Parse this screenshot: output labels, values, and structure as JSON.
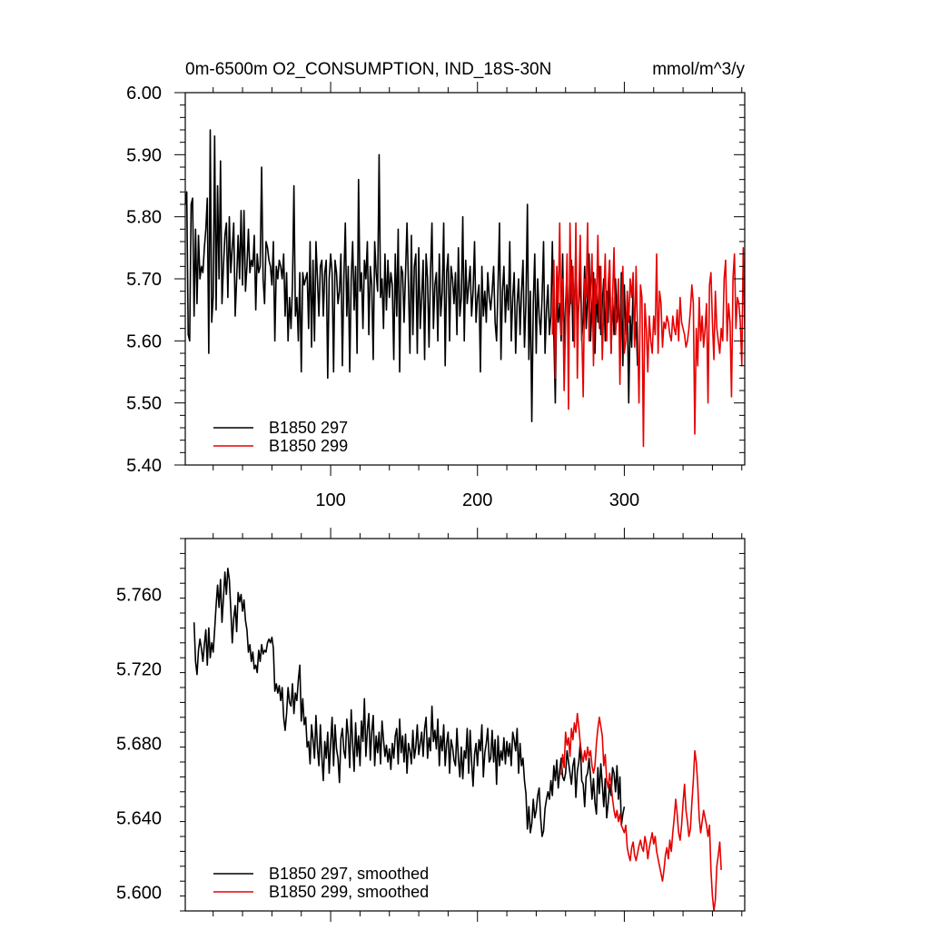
{
  "chart_data": [
    {
      "type": "line",
      "title_left": "0m-6500m O2_CONSUMPTION, IND_18S-30N",
      "title_right": "mmol/m^3/y",
      "xlim": [
        1,
        382
      ],
      "ylim": [
        5.4,
        6.0
      ],
      "xticks": [
        100,
        200,
        300
      ],
      "xtick_labels": [
        "100",
        "200",
        "300"
      ],
      "yticks": [
        5.4,
        5.5,
        5.6,
        5.7,
        5.8,
        5.9,
        6.0
      ],
      "ytick_labels": [
        "5.40",
        "5.50",
        "5.60",
        "5.70",
        "5.80",
        "5.90",
        "6.00"
      ],
      "legend_position": "bottom-left",
      "series": [
        {
          "name": "B1850 297",
          "color": "#000000",
          "x_start": 1,
          "values": [
            5.82,
            5.84,
            5.61,
            5.6,
            5.82,
            5.83,
            5.64,
            5.78,
            5.66,
            5.77,
            5.7,
            5.72,
            5.71,
            5.75,
            5.78,
            5.83,
            5.58,
            5.94,
            5.63,
            5.67,
            5.93,
            5.65,
            5.85,
            5.7,
            5.89,
            5.66,
            5.72,
            5.77,
            5.79,
            5.67,
            5.8,
            5.71,
            5.75,
            5.79,
            5.64,
            5.7,
            5.77,
            5.7,
            5.81,
            5.69,
            5.81,
            5.68,
            5.72,
            5.78,
            5.71,
            5.73,
            5.72,
            5.77,
            5.65,
            5.74,
            5.71,
            5.72,
            5.88,
            5.7,
            5.66,
            5.76,
            5.75,
            5.73,
            5.72,
            5.69,
            5.76,
            5.6,
            5.72,
            5.7,
            5.73,
            5.72,
            5.7,
            5.74,
            5.64,
            5.71,
            5.6,
            5.67,
            5.62,
            5.69,
            5.85,
            5.64,
            5.67,
            5.6,
            5.71,
            5.55,
            5.71,
            5.69,
            5.7,
            5.71,
            5.62,
            5.76,
            5.59,
            5.73,
            5.6,
            5.76,
            5.7,
            5.64,
            5.72,
            5.73,
            5.64,
            5.71,
            5.73,
            5.54,
            5.7,
            5.74,
            5.71,
            5.55,
            5.73,
            5.71,
            5.66,
            5.68,
            5.74,
            5.56,
            5.7,
            5.79,
            5.64,
            5.72,
            5.55,
            5.7,
            5.76,
            5.65,
            5.72,
            5.58,
            5.86,
            5.68,
            5.71,
            5.62,
            5.73,
            5.7,
            5.76,
            5.61,
            5.72,
            5.69,
            5.57,
            5.76,
            5.71,
            5.68,
            5.9,
            5.67,
            5.7,
            5.62,
            5.74,
            5.65,
            5.73,
            5.67,
            5.71,
            5.69,
            5.57,
            5.74,
            5.64,
            5.78,
            5.55,
            5.72,
            5.71,
            5.63,
            5.71,
            5.79,
            5.69,
            5.58,
            5.77,
            5.61,
            5.72,
            5.74,
            5.58,
            5.75,
            5.62,
            5.67,
            5.73,
            5.57,
            5.74,
            5.7,
            5.59,
            5.71,
            5.79,
            5.62,
            5.69,
            5.71,
            5.6,
            5.74,
            5.64,
            5.68,
            5.79,
            5.56,
            5.71,
            5.74,
            5.6,
            5.72,
            5.7,
            5.66,
            5.71,
            5.61,
            5.75,
            5.64,
            5.67,
            5.8,
            5.6,
            5.73,
            5.66,
            5.69,
            5.72,
            5.64,
            5.68,
            5.76,
            5.63,
            5.67,
            5.69,
            5.55,
            5.72,
            5.64,
            5.68,
            5.63,
            5.71,
            5.67,
            5.65,
            5.68,
            5.72,
            5.63,
            5.6,
            5.69,
            5.79,
            5.57,
            5.68,
            5.72,
            5.63,
            5.69,
            5.65,
            5.76,
            5.6,
            5.67,
            5.71,
            5.58,
            5.66,
            5.7,
            5.61,
            5.68,
            5.73,
            5.59,
            5.66,
            5.82,
            5.57,
            5.68,
            5.47,
            5.66,
            5.74,
            5.58,
            5.7,
            5.64,
            5.61,
            5.67,
            5.76,
            5.58,
            5.65,
            5.69,
            5.61,
            5.64,
            5.76,
            5.61,
            5.5,
            5.68,
            5.63,
            5.66,
            5.6,
            5.74,
            5.58,
            5.66,
            5.71,
            5.62,
            5.66,
            5.73,
            5.6,
            5.65,
            5.75,
            5.62,
            5.66,
            5.71,
            5.6,
            5.64,
            5.72,
            5.62,
            5.67,
            5.74,
            5.6,
            5.66,
            5.71,
            5.58,
            5.68,
            5.63,
            5.72,
            5.61,
            5.66,
            5.7,
            5.6,
            5.68,
            5.63,
            5.73,
            5.58,
            5.67,
            5.61,
            5.7,
            5.63,
            5.66,
            5.6,
            5.71,
            5.56,
            5.69,
            5.61,
            5.66,
            5.5,
            5.64,
            5.59,
            5.69,
            5.6,
            5.63,
            5.56
          ]
        },
        {
          "name": "B1850 299",
          "color": "#e60000",
          "x_start": 251,
          "values": [
            5.61,
            5.73,
            5.54,
            5.72,
            5.66,
            5.79,
            5.61,
            5.7,
            5.52,
            5.63,
            5.74,
            5.49,
            5.79,
            5.66,
            5.72,
            5.59,
            5.79,
            5.54,
            5.68,
            5.77,
            5.62,
            5.51,
            5.7,
            5.67,
            5.79,
            5.6,
            5.68,
            5.74,
            5.56,
            5.7,
            5.66,
            5.77,
            5.62,
            5.72,
            5.57,
            5.66,
            5.74,
            5.6,
            5.69,
            5.73,
            5.58,
            5.67,
            5.75,
            5.61,
            5.65,
            5.7,
            5.53,
            5.66,
            5.72,
            5.58,
            5.6,
            5.68,
            5.63,
            5.7,
            5.67,
            5.71,
            5.59,
            5.72,
            5.62,
            5.5,
            5.69,
            5.67,
            5.43,
            5.66,
            5.62,
            5.55,
            5.64,
            5.6,
            5.58,
            5.64,
            5.61,
            5.74,
            5.58,
            5.68,
            5.66,
            5.59,
            5.63,
            5.62,
            5.64,
            5.63,
            5.61,
            5.6,
            5.64,
            5.62,
            5.61,
            5.65,
            5.6,
            5.67,
            5.63,
            5.62,
            5.61,
            5.59,
            5.6,
            5.62,
            5.65,
            5.69,
            5.66,
            5.45,
            5.62,
            5.56,
            5.67,
            5.6,
            5.64,
            5.59,
            5.62,
            5.66,
            5.5,
            5.69,
            5.71,
            5.63,
            5.57,
            5.68,
            5.62,
            5.6,
            5.58,
            5.62,
            5.6,
            5.7,
            5.73,
            5.6,
            5.66,
            5.63,
            5.51,
            5.7,
            5.74,
            5.62,
            5.67,
            5.66,
            5.63,
            5.56,
            5.75,
            5.62,
            5.61,
            5.57,
            5.6,
            5.55,
            5.62,
            5.74,
            5.73,
            5.54
          ]
        }
      ]
    },
    {
      "type": "line",
      "xlim": [
        1,
        382
      ],
      "ylim": [
        5.59,
        5.79
      ],
      "xticks": [
        100,
        200,
        300
      ],
      "yticks": [
        5.6,
        5.64,
        5.68,
        5.72,
        5.76
      ],
      "ytick_labels": [
        "5.600",
        "5.640",
        "5.680",
        "5.720",
        "5.760"
      ],
      "legend_position": "bottom-left",
      "series": [
        {
          "name": "B1850 297, smoothed",
          "color": "#000000",
          "x_start": 7,
          "values": [
            5.745,
            5.724,
            5.717,
            5.73,
            5.736,
            5.731,
            5.724,
            5.733,
            5.741,
            5.722,
            5.742,
            5.726,
            5.734,
            5.729,
            5.741,
            5.754,
            5.765,
            5.753,
            5.768,
            5.745,
            5.758,
            5.772,
            5.76,
            5.774,
            5.768,
            5.752,
            5.734,
            5.747,
            5.754,
            5.74,
            5.761,
            5.756,
            5.76,
            5.751,
            5.757,
            5.746,
            5.741,
            5.729,
            5.733,
            5.724,
            5.729,
            5.72,
            5.722,
            5.718,
            5.73,
            5.724,
            5.733,
            5.728,
            5.73,
            5.729,
            5.734,
            5.736,
            5.734,
            5.737,
            5.731,
            5.708,
            5.712,
            5.707,
            5.711,
            5.703,
            5.71,
            5.694,
            5.687,
            5.696,
            5.71,
            5.702,
            5.7,
            5.712,
            5.696,
            5.707,
            5.703,
            5.714,
            5.722,
            5.692,
            5.704,
            5.69,
            5.694,
            5.678,
            5.681,
            5.669,
            5.69,
            5.682,
            5.672,
            5.695,
            5.678,
            5.668,
            5.69,
            5.673,
            5.66,
            5.681,
            5.672,
            5.686,
            5.664,
            5.68,
            5.694,
            5.668,
            5.69,
            5.677,
            5.672,
            5.659,
            5.683,
            5.688,
            5.676,
            5.672,
            5.693,
            5.684,
            5.667,
            5.698,
            5.68,
            5.665,
            5.691,
            5.673,
            5.684,
            5.668,
            5.692,
            5.681,
            5.704,
            5.673,
            5.687,
            5.696,
            5.671,
            5.686,
            5.695,
            5.668,
            5.684,
            5.675,
            5.686,
            5.669,
            5.692,
            5.682,
            5.673,
            5.679,
            5.67,
            5.677,
            5.666,
            5.68,
            5.672,
            5.684,
            5.688,
            5.669,
            5.693,
            5.675,
            5.684,
            5.67,
            5.685,
            5.664,
            5.68,
            5.676,
            5.669,
            5.687,
            5.672,
            5.678,
            5.69,
            5.674,
            5.68,
            5.686,
            5.673,
            5.688,
            5.694,
            5.672,
            5.683,
            5.676,
            5.7,
            5.681,
            5.687,
            5.677,
            5.693,
            5.668,
            5.684,
            5.676,
            5.69,
            5.668,
            5.68,
            5.686,
            5.664,
            5.682,
            5.678,
            5.671,
            5.668,
            5.688,
            5.672,
            5.662,
            5.678,
            5.661,
            5.676,
            5.672,
            5.688,
            5.664,
            5.687,
            5.67,
            5.657,
            5.674,
            5.68,
            5.668,
            5.682,
            5.676,
            5.69,
            5.662,
            5.675,
            5.68,
            5.688,
            5.67,
            5.672,
            5.687,
            5.67,
            5.682,
            5.658,
            5.684,
            5.668,
            5.676,
            5.671,
            5.683,
            5.669,
            5.681,
            5.673,
            5.68,
            5.668,
            5.686,
            5.682,
            5.676,
            5.688,
            5.664,
            5.68,
            5.668,
            5.672,
            5.66,
            5.653,
            5.634,
            5.646,
            5.632,
            5.637,
            5.65,
            5.64,
            5.644,
            5.652,
            5.656,
            5.64,
            5.63,
            5.633,
            5.645,
            5.65,
            5.654,
            5.65,
            5.66,
            5.652,
            5.668,
            5.66,
            5.671,
            5.656,
            5.665,
            5.672,
            5.662,
            5.66,
            5.664,
            5.676,
            5.67,
            5.664,
            5.658,
            5.668,
            5.672,
            5.651,
            5.665,
            5.67,
            5.68,
            5.66,
            5.658,
            5.646,
            5.662,
            5.664,
            5.672,
            5.662,
            5.65,
            5.661,
            5.648,
            5.642,
            5.667,
            5.653,
            5.669,
            5.658,
            5.646,
            5.661,
            5.64,
            5.648,
            5.658,
            5.652,
            5.667,
            5.664,
            5.654,
            5.668,
            5.65,
            5.662,
            5.636,
            5.642,
            5.646
          ]
        },
        {
          "name": "B1850 299, smoothed",
          "color": "#e60000",
          "x_start": 257,
          "values": [
            5.663,
            5.674,
            5.667,
            5.686,
            5.679,
            5.683,
            5.673,
            5.688,
            5.682,
            5.691,
            5.686,
            5.696,
            5.689,
            5.68,
            5.674,
            5.67,
            5.676,
            5.671,
            5.678,
            5.673,
            5.676,
            5.668,
            5.664,
            5.668,
            5.68,
            5.688,
            5.694,
            5.689,
            5.684,
            5.668,
            5.674,
            5.66,
            5.656,
            5.664,
            5.658,
            5.65,
            5.644,
            5.64,
            5.644,
            5.638,
            5.642,
            5.636,
            5.634,
            5.632,
            5.636,
            5.624,
            5.62,
            5.617,
            5.624,
            5.627,
            5.62,
            5.617,
            5.621,
            5.625,
            5.628,
            5.624,
            5.622,
            5.63,
            5.626,
            5.618,
            5.624,
            5.628,
            5.632,
            5.626,
            5.63,
            5.622,
            5.618,
            5.614,
            5.61,
            5.606,
            5.612,
            5.62,
            5.624,
            5.618,
            5.628,
            5.622,
            5.632,
            5.64,
            5.65,
            5.642,
            5.632,
            5.628,
            5.636,
            5.648,
            5.658,
            5.644,
            5.638,
            5.63,
            5.634,
            5.648,
            5.66,
            5.676,
            5.67,
            5.658,
            5.64,
            5.632,
            5.638,
            5.644,
            5.64,
            5.636,
            5.63,
            5.636,
            5.612,
            5.598,
            5.59,
            5.596,
            5.614,
            5.62,
            5.627,
            5.612
          ]
        }
      ]
    }
  ]
}
